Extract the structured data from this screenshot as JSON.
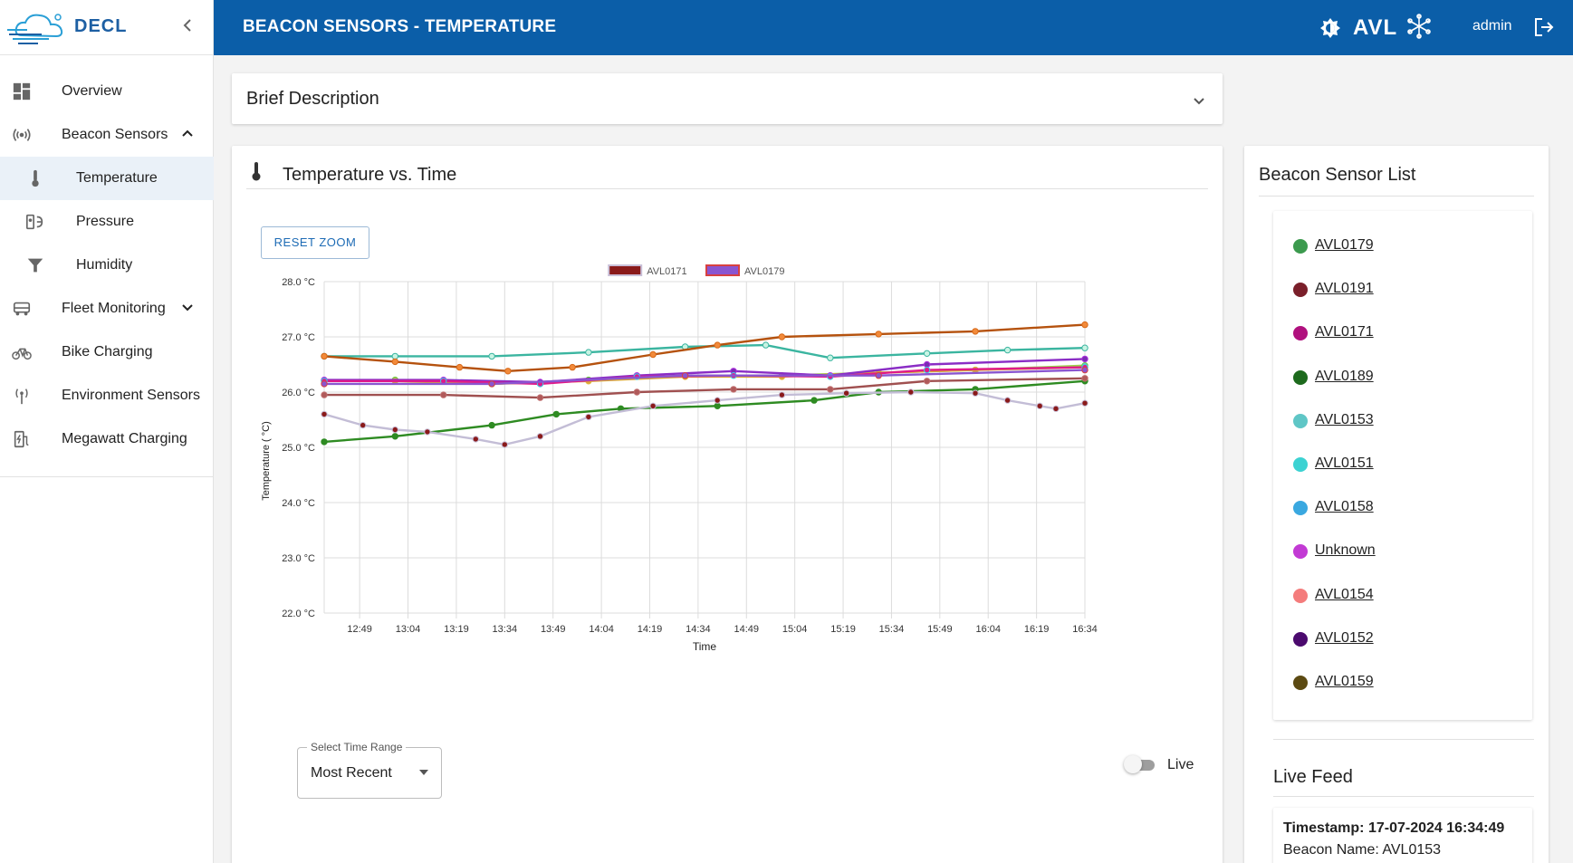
{
  "brand": {
    "name": "DECL"
  },
  "header": {
    "title": "BEACON SENSORS - TEMPERATURE",
    "logo_text": "AVL",
    "user": "admin"
  },
  "sidebar": {
    "items": [
      {
        "label": "Overview",
        "icon": "dashboard-icon"
      },
      {
        "label": "Beacon Sensors",
        "icon": "broadcast-icon",
        "expanded": true
      },
      {
        "label": "Temperature",
        "icon": "thermometer-icon",
        "active": true
      },
      {
        "label": "Pressure",
        "icon": "gauge-icon"
      },
      {
        "label": "Humidity",
        "icon": "filter-icon"
      },
      {
        "label": "Fleet Monitoring",
        "icon": "truck-icon",
        "expanded": false
      },
      {
        "label": "Bike Charging",
        "icon": "bicycle-icon"
      },
      {
        "label": "Environment Sensors",
        "icon": "antenna-icon"
      },
      {
        "label": "Megawatt Charging",
        "icon": "ev-charger-icon"
      }
    ]
  },
  "brief": {
    "title": "Brief Description"
  },
  "chart_card": {
    "title": "Temperature vs. Time",
    "reset_zoom": "RESET ZOOM"
  },
  "controls": {
    "time_range_label": "Select Time Range",
    "time_range_value": "Most Recent",
    "live_label": "Live",
    "live_on": false
  },
  "sensor_panel": {
    "title": "Beacon Sensor List",
    "sensors": [
      {
        "name": "AVL0179",
        "color": "#3c9a4e"
      },
      {
        "name": "AVL0191",
        "color": "#7a1f2a"
      },
      {
        "name": "AVL0171",
        "color": "#b0107e"
      },
      {
        "name": "AVL0189",
        "color": "#1d6a1d"
      },
      {
        "name": "AVL0153",
        "color": "#5fc6c6"
      },
      {
        "name": "AVL0151",
        "color": "#3cd2d2"
      },
      {
        "name": "AVL0158",
        "color": "#3aa8e0"
      },
      {
        "name": "Unknown",
        "color": "#c23ad4"
      },
      {
        "name": "AVL0154",
        "color": "#f47c7c"
      },
      {
        "name": "AVL0152",
        "color": "#4b0a6e"
      },
      {
        "name": "AVL0159",
        "color": "#5c4a12"
      }
    ]
  },
  "live_feed": {
    "title": "Live Feed",
    "timestamp": "Timestamp: 17-07-2024 16:34:49",
    "beacon_name": "Beacon Name: AVL0153"
  },
  "chart_data": {
    "type": "line",
    "xlabel": "Time",
    "ylabel": "Temperature ( °C)",
    "ylim": [
      22,
      28
    ],
    "xlim": [
      "12:38",
      "16:34"
    ],
    "y_ticks": [
      22,
      23,
      24,
      25,
      26,
      27,
      28
    ],
    "y_tick_labels": [
      "22.0 °C",
      "23.0 °C",
      "24.0 °C",
      "25.0 °C",
      "26.0 °C",
      "27.0 °C",
      "28.0 °C"
    ],
    "x_ticks": [
      "12:49",
      "13:04",
      "13:19",
      "13:34",
      "13:49",
      "14:04",
      "14:19",
      "14:34",
      "14:49",
      "15:04",
      "15:19",
      "15:34",
      "15:49",
      "16:04",
      "16:19",
      "16:34"
    ],
    "grid": true,
    "legend_position": "top",
    "series": [
      {
        "name": "AVL0159",
        "fill": "#5bc0eb",
        "border": "#66cc33",
        "line": "#9ad14b",
        "hidden": false,
        "points": [
          [
            "12:38",
            26.2
          ],
          [
            "13:00",
            26.22
          ],
          [
            "13:30",
            26.15
          ],
          [
            "14:00",
            26.22
          ],
          [
            "14:30",
            26.3
          ],
          [
            "15:00",
            26.3
          ],
          [
            "15:30",
            26.35
          ],
          [
            "16:00",
            26.4
          ],
          [
            "16:34",
            26.48
          ]
        ]
      },
      {
        "name": "AVL0191",
        "fill": "#d9a53a",
        "border": "#e0b840",
        "line": "#d9a53a",
        "hidden": false,
        "points": [
          [
            "12:38",
            26.2
          ],
          [
            "13:00",
            26.2
          ],
          [
            "13:30",
            26.15
          ],
          [
            "14:00",
            26.2
          ],
          [
            "14:30",
            26.28
          ],
          [
            "15:00",
            26.28
          ],
          [
            "15:30",
            26.35
          ],
          [
            "16:00",
            26.4
          ],
          [
            "16:34",
            26.45
          ]
        ]
      },
      {
        "name": "AVL0153",
        "fill": "#c8f4e4",
        "border": "#3bb5a0",
        "line": "#3bb5a0",
        "hidden": false,
        "points": [
          [
            "12:38",
            26.65
          ],
          [
            "13:00",
            26.65
          ],
          [
            "13:30",
            26.65
          ],
          [
            "14:00",
            26.72
          ],
          [
            "14:30",
            26.82
          ],
          [
            "14:55",
            26.85
          ],
          [
            "15:15",
            26.62
          ],
          [
            "15:45",
            26.7
          ],
          [
            "16:10",
            26.76
          ],
          [
            "16:34",
            26.8
          ]
        ]
      },
      {
        "name": "AVL0154",
        "fill": "#2e8b22",
        "border": "#2e8b22",
        "line": "#2e8b22",
        "hidden": false,
        "points": [
          [
            "12:38",
            25.1
          ],
          [
            "13:00",
            25.2
          ],
          [
            "13:30",
            25.4
          ],
          [
            "13:50",
            25.6
          ],
          [
            "14:10",
            25.7
          ],
          [
            "14:40",
            25.75
          ],
          [
            "15:10",
            25.85
          ],
          [
            "15:30",
            26.0
          ],
          [
            "16:00",
            26.05
          ],
          [
            "16:34",
            26.2
          ]
        ]
      },
      {
        "name": "AVL0152",
        "fill": "#f28a3a",
        "border": "#d86a1a",
        "line": "#b5520e",
        "hidden": false,
        "points": [
          [
            "12:38",
            26.65
          ],
          [
            "13:00",
            26.55
          ],
          [
            "13:20",
            26.45
          ],
          [
            "13:35",
            26.38
          ],
          [
            "13:55",
            26.45
          ],
          [
            "14:20",
            26.68
          ],
          [
            "14:40",
            26.85
          ],
          [
            "15:00",
            27.0
          ],
          [
            "15:30",
            27.05
          ],
          [
            "16:00",
            27.1
          ],
          [
            "16:34",
            27.22
          ]
        ]
      },
      {
        "name": "AVL0189",
        "fill": "#b05a5a",
        "border": "#c07070",
        "line": "#a05050",
        "hidden": false,
        "points": [
          [
            "12:38",
            25.95
          ],
          [
            "13:15",
            25.95
          ],
          [
            "13:45",
            25.9
          ],
          [
            "14:15",
            26.0
          ],
          [
            "14:45",
            26.05
          ],
          [
            "15:15",
            26.05
          ],
          [
            "15:45",
            26.2
          ],
          [
            "16:34",
            26.25
          ]
        ]
      },
      {
        "name": "AVL0151",
        "fill": "#7a2cb3",
        "border": "#b030e0",
        "line": "#8a2dc5",
        "hidden": false,
        "points": [
          [
            "12:38",
            26.22
          ],
          [
            "13:15",
            26.22
          ],
          [
            "13:45",
            26.18
          ],
          [
            "14:15",
            26.3
          ],
          [
            "14:45",
            26.38
          ],
          [
            "15:15",
            26.3
          ],
          [
            "15:45",
            26.5
          ],
          [
            "16:34",
            26.6
          ]
        ]
      },
      {
        "name": "AVL0158",
        "fill": "#e01a8a",
        "border": "#3ad0e8",
        "line": "#e01a8a",
        "hidden": false,
        "points": [
          [
            "12:38",
            26.2
          ],
          [
            "13:15",
            26.2
          ],
          [
            "13:45",
            26.15
          ],
          [
            "14:15",
            26.28
          ],
          [
            "14:45",
            26.3
          ],
          [
            "15:15",
            26.28
          ],
          [
            "15:45",
            26.4
          ],
          [
            "16:34",
            26.45
          ]
        ]
      },
      {
        "name": "Unknown",
        "fill": "#d68ad6",
        "border": "#a0a0a0",
        "line": "#d68ad6",
        "hidden": true,
        "points": []
      },
      {
        "name": "AVL0171",
        "fill": "#8a1a1a",
        "border": "#c9c0d8",
        "line": "#c3bdd6",
        "hidden": false,
        "points": [
          [
            "12:38",
            25.6
          ],
          [
            "12:50",
            25.4
          ],
          [
            "13:00",
            25.32
          ],
          [
            "13:10",
            25.28
          ],
          [
            "13:25",
            25.15
          ],
          [
            "13:34",
            25.05
          ],
          [
            "13:45",
            25.2
          ],
          [
            "14:00",
            25.55
          ],
          [
            "14:20",
            25.75
          ],
          [
            "14:40",
            25.85
          ],
          [
            "15:00",
            25.95
          ],
          [
            "15:20",
            25.98
          ],
          [
            "15:40",
            26.0
          ],
          [
            "16:00",
            25.98
          ],
          [
            "16:10",
            25.85
          ],
          [
            "16:20",
            25.75
          ],
          [
            "16:25",
            25.7
          ],
          [
            "16:34",
            25.8
          ]
        ]
      },
      {
        "name": "AVL0179",
        "fill": "#8a55d0",
        "border": "#d84040",
        "line": "#8a55d0",
        "hidden": false,
        "points": [
          [
            "12:38",
            26.15
          ],
          [
            "13:30",
            26.15
          ],
          [
            "14:30",
            26.3
          ],
          [
            "15:30",
            26.3
          ],
          [
            "16:34",
            26.4
          ]
        ]
      }
    ]
  }
}
